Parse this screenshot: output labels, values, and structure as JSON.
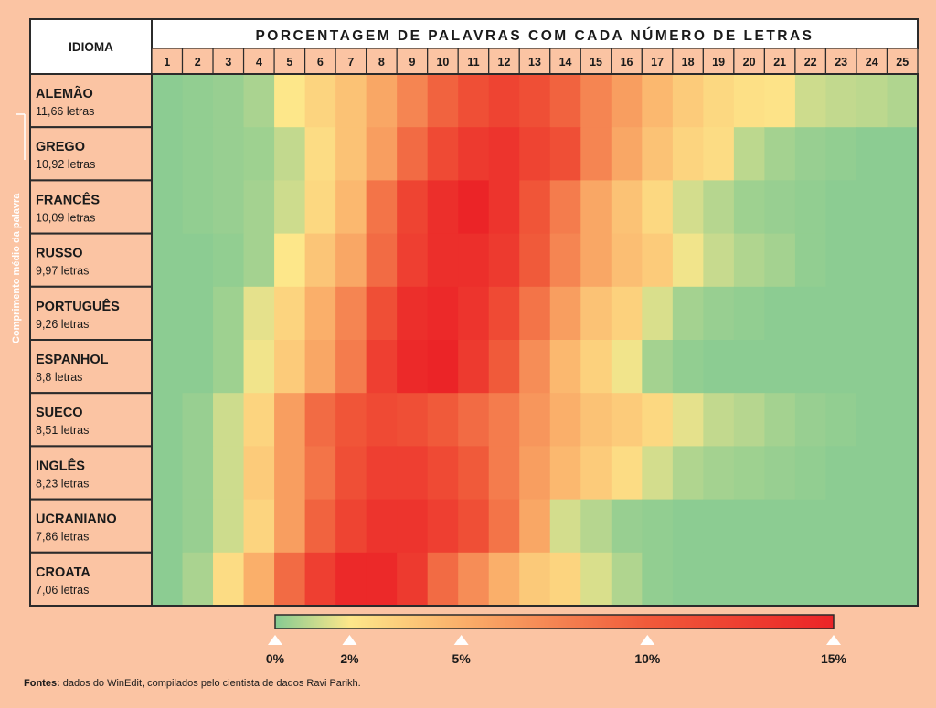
{
  "chart_data": {
    "type": "heatmap",
    "row_header": "IDIOMA",
    "title": "PORCENTAGEM DE PALAVRAS COM CADA NÚMERO DE LETRAS",
    "side_label": "Comprimento médio da palavra",
    "columns": [
      "1",
      "2",
      "3",
      "4",
      "5",
      "6",
      "7",
      "8",
      "9",
      "10",
      "11",
      "12",
      "13",
      "14",
      "15",
      "16",
      "17",
      "18",
      "19",
      "20",
      "21",
      "22",
      "23",
      "24",
      "25"
    ],
    "rows": [
      {
        "name": "ALEMÃO",
        "avg": "11,66 letras",
        "values": [
          0.1,
          0.2,
          0.3,
          0.6,
          2.0,
          3.0,
          4.0,
          5.5,
          7.5,
          9.5,
          11.0,
          12.0,
          11.0,
          9.5,
          7.5,
          6.0,
          4.5,
          3.5,
          2.8,
          2.4,
          2.2,
          1.2,
          1.0,
          0.9,
          0.7
        ]
      },
      {
        "name": "GREGO",
        "avg": "10,92 letras",
        "values": [
          0.1,
          0.2,
          0.3,
          0.4,
          1.0,
          2.6,
          4.0,
          6.0,
          9.0,
          11.5,
          13.0,
          13.5,
          12.0,
          11.0,
          7.5,
          5.5,
          4.0,
          3.0,
          2.6,
          0.9,
          0.5,
          0.3,
          0.2,
          0.1,
          0.1
        ]
      },
      {
        "name": "FRANCÊS",
        "avg": "10,09 letras",
        "values": [
          0.1,
          0.2,
          0.3,
          0.5,
          1.2,
          2.8,
          4.5,
          8.5,
          12.0,
          14.0,
          15.0,
          13.5,
          10.5,
          8.0,
          5.5,
          4.0,
          2.8,
          1.3,
          0.8,
          0.4,
          0.3,
          0.2,
          0.1,
          0.1,
          0.1
        ]
      },
      {
        "name": "RUSSO",
        "avg": "9,97 letras",
        "values": [
          0.1,
          0.1,
          0.2,
          0.5,
          2.0,
          3.8,
          5.5,
          9.0,
          12.5,
          14.0,
          14.0,
          13.0,
          10.0,
          7.5,
          5.5,
          4.2,
          3.5,
          1.8,
          1.1,
          0.7,
          0.5,
          0.2,
          0.1,
          0.1,
          0.1
        ]
      },
      {
        "name": "PORTUGUÊS",
        "avg": "9,26 letras",
        "values": [
          0.1,
          0.1,
          0.4,
          1.6,
          3.0,
          5.0,
          7.5,
          11.0,
          14.0,
          14.5,
          13.5,
          11.5,
          8.5,
          6.0,
          4.0,
          3.2,
          1.4,
          0.5,
          0.3,
          0.2,
          0.1,
          0.1,
          0.1,
          0.1,
          0.1
        ]
      },
      {
        "name": "ESPANHOL",
        "avg": "8,8 letras",
        "values": [
          0.1,
          0.1,
          0.4,
          1.8,
          3.5,
          5.5,
          8.0,
          12.5,
          14.5,
          15.0,
          13.0,
          10.0,
          7.0,
          4.5,
          3.2,
          1.8,
          0.5,
          0.2,
          0.1,
          0.1,
          0.1,
          0.1,
          0.1,
          0.1,
          0.1
        ]
      },
      {
        "name": "SUECO",
        "avg": "8,51 letras",
        "values": [
          0.1,
          0.3,
          1.2,
          3.0,
          6.0,
          9.0,
          10.5,
          11.5,
          11.0,
          10.0,
          9.0,
          8.0,
          6.5,
          5.0,
          4.0,
          3.5,
          2.8,
          1.6,
          1.0,
          0.8,
          0.5,
          0.3,
          0.2,
          0.1,
          0.1
        ]
      },
      {
        "name": "INGLÊS",
        "avg": "8,23 letras",
        "values": [
          0.1,
          0.3,
          1.2,
          3.5,
          6.0,
          8.5,
          11.0,
          12.5,
          12.5,
          11.5,
          10.0,
          8.0,
          6.0,
          4.5,
          3.5,
          2.6,
          1.3,
          0.7,
          0.5,
          0.4,
          0.3,
          0.2,
          0.1,
          0.1,
          0.1
        ]
      },
      {
        "name": "UCRANIANO",
        "avg": "7,86 letras",
        "values": [
          0.1,
          0.3,
          1.2,
          3.0,
          6.0,
          9.5,
          12.0,
          13.5,
          13.5,
          12.5,
          11.0,
          8.5,
          5.5,
          1.3,
          0.8,
          0.3,
          0.2,
          0.1,
          0.1,
          0.1,
          0.1,
          0.1,
          0.1,
          0.1,
          0.1
        ]
      },
      {
        "name": "CROATA",
        "avg": "7,06 letras",
        "values": [
          0.1,
          0.6,
          2.6,
          5.0,
          9.0,
          12.5,
          14.5,
          14.5,
          13.0,
          9.0,
          7.0,
          5.0,
          3.6,
          3.0,
          1.4,
          0.7,
          0.2,
          0.1,
          0.1,
          0.1,
          0.1,
          0.1,
          0.1,
          0.1,
          0.1
        ]
      }
    ],
    "scale": {
      "ticks": [
        0,
        2,
        5,
        10,
        15
      ],
      "labels": [
        "0%",
        "2%",
        "5%",
        "10%",
        "15%"
      ],
      "stops": [
        {
          "v": 0,
          "color": "#86cb92"
        },
        {
          "v": 2,
          "color": "#fde78a"
        },
        {
          "v": 5,
          "color": "#faaf6a"
        },
        {
          "v": 10,
          "color": "#f05a3a"
        },
        {
          "v": 15,
          "color": "#eb2427"
        }
      ]
    }
  },
  "source": {
    "label": "Fontes:",
    "text": " dados do WinEdit, compilados pelo cientista de dados Ravi Parikh."
  },
  "colors": {
    "background": "#fbc4a3",
    "border": "#2b2b2b",
    "header_bg": "#ffffff",
    "side_bracket": "#ffffff"
  }
}
